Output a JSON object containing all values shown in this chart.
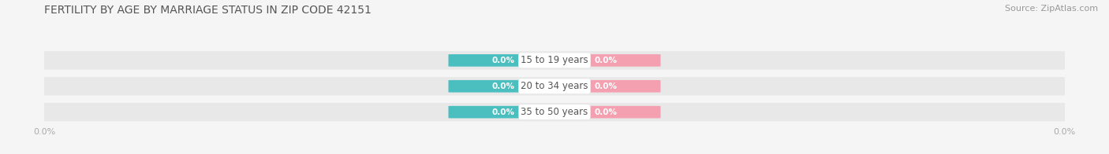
{
  "title": "FERTILITY BY AGE BY MARRIAGE STATUS IN ZIP CODE 42151",
  "source": "Source: ZipAtlas.com",
  "categories": [
    "15 to 19 years",
    "20 to 34 years",
    "35 to 50 years"
  ],
  "married_values": [
    0.0,
    0.0,
    0.0
  ],
  "unmarried_values": [
    0.0,
    0.0,
    0.0
  ],
  "married_color": "#4BBFBF",
  "unmarried_color": "#F4A0B0",
  "bar_bg_color": "#E8E8E8",
  "title_color": "#555555",
  "source_color": "#999999",
  "label_color_married": "#ffffff",
  "label_color_unmarried": "#ffffff",
  "category_text_color": "#555555",
  "axis_label_color": "#aaaaaa",
  "background_color": "#f5f5f5",
  "title_fontsize": 10,
  "source_fontsize": 8,
  "label_fontsize": 7.5,
  "category_fontsize": 8.5,
  "legend_fontsize": 8.5,
  "tick_fontsize": 8
}
